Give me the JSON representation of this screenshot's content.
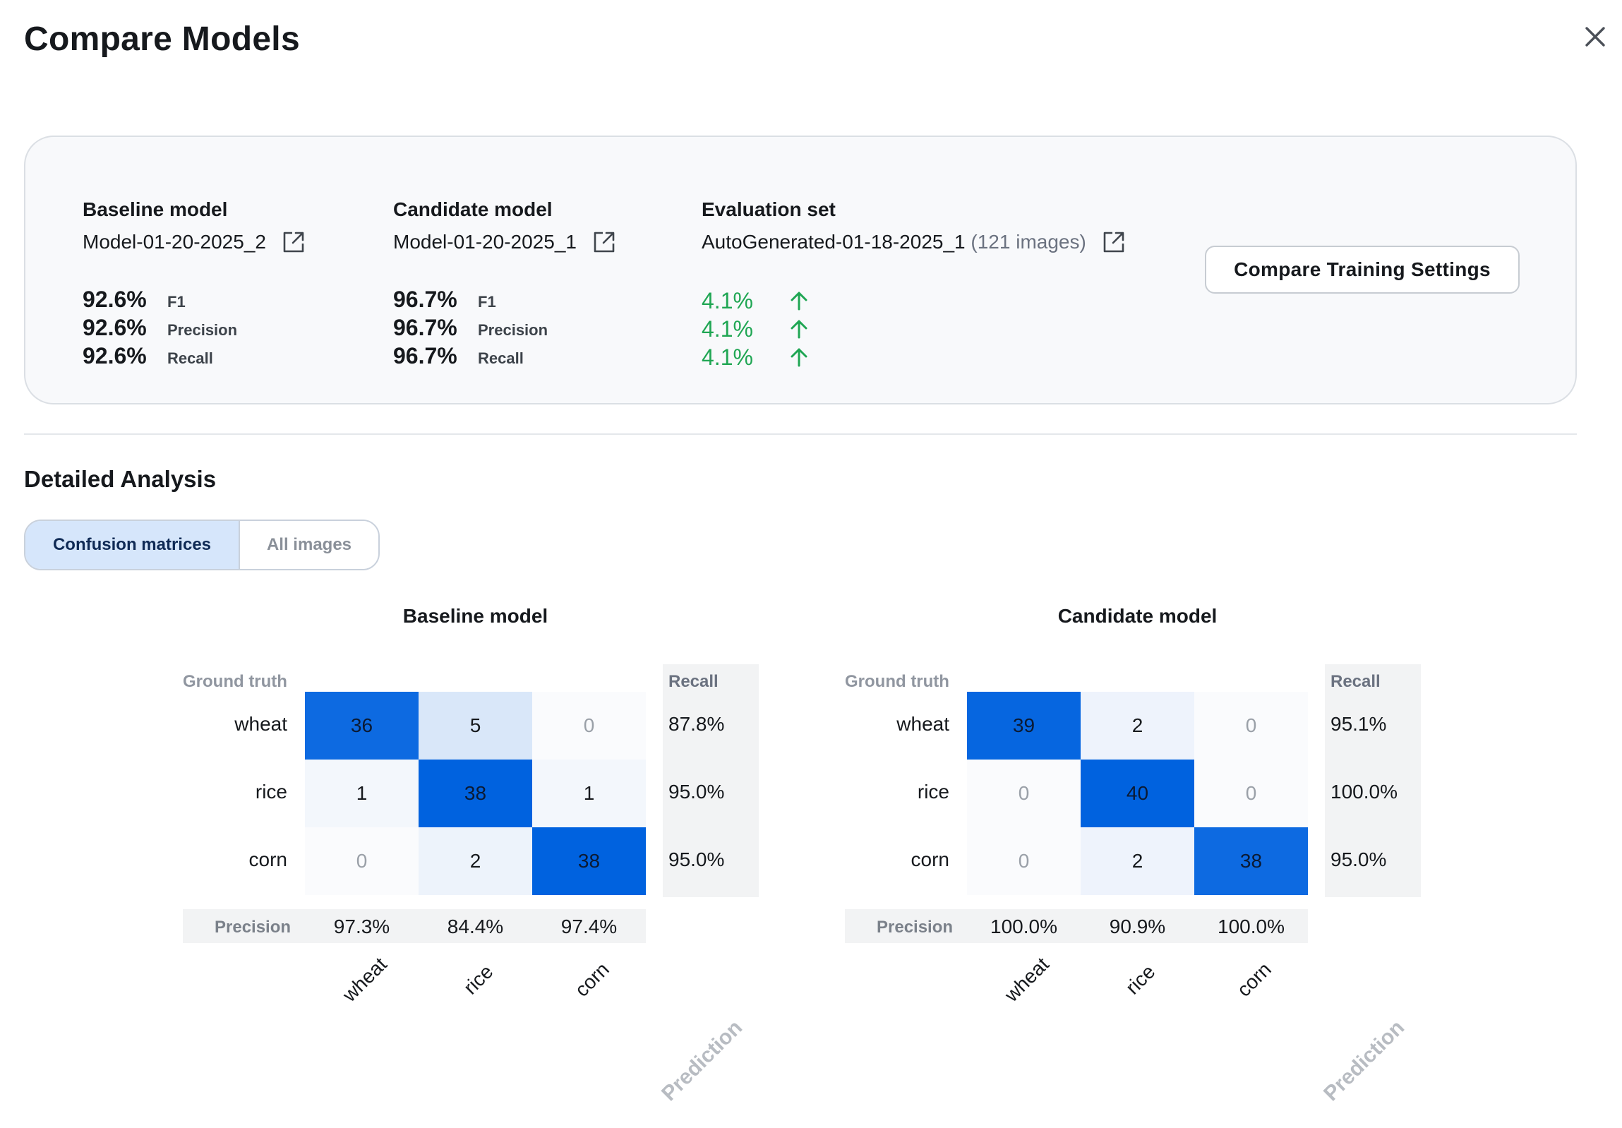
{
  "title": "Compare Models",
  "summary": {
    "baseline": {
      "label": "Baseline model",
      "name": "Model-01-20-2025_2",
      "metrics": [
        {
          "value": "92.6%",
          "label": "F1"
        },
        {
          "value": "92.6%",
          "label": "Precision"
        },
        {
          "value": "92.6%",
          "label": "Recall"
        }
      ]
    },
    "candidate": {
      "label": "Candidate model",
      "name": "Model-01-20-2025_1",
      "metrics": [
        {
          "value": "96.7%",
          "label": "F1"
        },
        {
          "value": "96.7%",
          "label": "Precision"
        },
        {
          "value": "96.7%",
          "label": "Recall"
        }
      ]
    },
    "evaluation": {
      "label": "Evaluation set",
      "name": "AutoGenerated-01-18-2025_1",
      "count": "(121 images)",
      "deltas": [
        "4.1%",
        "4.1%",
        "4.1%"
      ]
    },
    "compare_button": "Compare Training Settings"
  },
  "detail": {
    "title": "Detailed Analysis",
    "tabs": [
      "Confusion matrices",
      "All images"
    ]
  },
  "matrices": [
    {
      "title": "Baseline model",
      "ground_truth_label": "Ground truth",
      "recall_label": "Recall",
      "precision_label": "Precision",
      "prediction_label": "Prediction",
      "classes": [
        "wheat",
        "rice",
        "corn"
      ],
      "values": [
        [
          36,
          5,
          0
        ],
        [
          1,
          38,
          1
        ],
        [
          0,
          2,
          38
        ]
      ],
      "cell_text": [
        [
          "36",
          "5",
          "0"
        ],
        [
          "1",
          "38",
          "1"
        ],
        [
          "0",
          "2",
          "38"
        ]
      ],
      "recall": [
        "87.8%",
        "95.0%",
        "95.0%"
      ],
      "precision": [
        "97.3%",
        "84.4%",
        "97.4%"
      ]
    },
    {
      "title": "Candidate model",
      "ground_truth_label": "Ground truth",
      "recall_label": "Recall",
      "precision_label": "Precision",
      "prediction_label": "Prediction",
      "classes": [
        "wheat",
        "rice",
        "corn"
      ],
      "values": [
        [
          39,
          2,
          0
        ],
        [
          0,
          40,
          0
        ],
        [
          0,
          2,
          38
        ]
      ],
      "cell_text": [
        [
          "39",
          "2",
          "0"
        ],
        [
          "0",
          "40",
          "0"
        ],
        [
          "0",
          "2",
          "38"
        ]
      ],
      "recall": [
        "95.1%",
        "100.0%",
        "95.0%"
      ],
      "precision": [
        "100.0%",
        "90.9%",
        "100.0%"
      ]
    }
  ],
  "colors": {
    "accent_green": "#1fa653",
    "cell_max": "#0062df",
    "tab_active_bg": "#d6e6fb"
  },
  "icons": {
    "close": "close-icon",
    "external": "external-link-icon",
    "up": "arrow-up-icon"
  }
}
